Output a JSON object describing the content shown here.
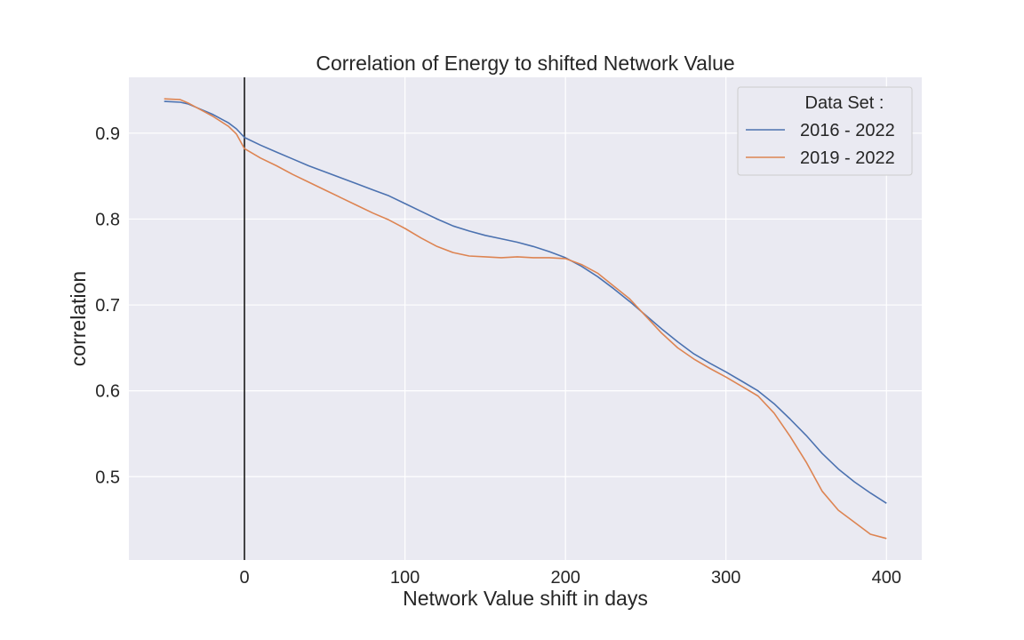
{
  "chart_data": {
    "type": "line",
    "title": "Correlation of Energy to shifted Network Value",
    "xlabel": "Network Value shift in days",
    "ylabel": "correlation",
    "xlim": [
      -72,
      422
    ],
    "ylim": [
      0.403,
      0.965
    ],
    "xticks": [
      0,
      100,
      200,
      300,
      400
    ],
    "yticks": [
      0.5,
      0.6,
      0.7,
      0.8,
      0.9
    ],
    "ytick_labels": [
      "0.5",
      "0.6",
      "0.7",
      "0.8",
      "0.9"
    ],
    "grid": true,
    "vline_x": 0,
    "legend": {
      "title": "Data Set :",
      "placement": "top-right"
    },
    "series": [
      {
        "name": "2016 - 2022",
        "color": "#4c72b0",
        "x": [
          -50,
          -40,
          -35,
          -30,
          -20,
          -10,
          -5,
          0,
          10,
          20,
          30,
          40,
          50,
          60,
          70,
          80,
          90,
          100,
          110,
          120,
          130,
          140,
          150,
          160,
          170,
          180,
          190,
          200,
          210,
          220,
          230,
          240,
          250,
          260,
          270,
          280,
          290,
          300,
          310,
          320,
          330,
          340,
          350,
          360,
          370,
          380,
          390,
          400
        ],
        "y": [
          0.937,
          0.936,
          0.934,
          0.93,
          0.922,
          0.912,
          0.905,
          0.895,
          0.886,
          0.878,
          0.87,
          0.862,
          0.855,
          0.848,
          0.841,
          0.834,
          0.827,
          0.818,
          0.809,
          0.8,
          0.792,
          0.786,
          0.781,
          0.777,
          0.773,
          0.768,
          0.762,
          0.755,
          0.745,
          0.733,
          0.719,
          0.704,
          0.688,
          0.672,
          0.657,
          0.643,
          0.632,
          0.622,
          0.611,
          0.6,
          0.585,
          0.567,
          0.548,
          0.527,
          0.509,
          0.494,
          0.481,
          0.469
        ]
      },
      {
        "name": "2019 - 2022",
        "color": "#dd8452",
        "x": [
          -50,
          -40,
          -35,
          -30,
          -20,
          -10,
          -5,
          0,
          10,
          20,
          30,
          40,
          50,
          60,
          70,
          80,
          90,
          100,
          110,
          120,
          130,
          140,
          150,
          160,
          170,
          180,
          190,
          200,
          210,
          220,
          230,
          240,
          250,
          260,
          270,
          280,
          290,
          300,
          310,
          320,
          330,
          340,
          350,
          360,
          370,
          380,
          390,
          400
        ],
        "y": [
          0.94,
          0.939,
          0.935,
          0.93,
          0.92,
          0.908,
          0.899,
          0.882,
          0.871,
          0.862,
          0.852,
          0.843,
          0.834,
          0.825,
          0.816,
          0.807,
          0.799,
          0.789,
          0.778,
          0.768,
          0.761,
          0.757,
          0.756,
          0.755,
          0.756,
          0.755,
          0.755,
          0.754,
          0.747,
          0.737,
          0.722,
          0.707,
          0.687,
          0.667,
          0.65,
          0.637,
          0.626,
          0.616,
          0.605,
          0.594,
          0.574,
          0.547,
          0.517,
          0.483,
          0.461,
          0.447,
          0.433,
          0.428
        ]
      }
    ]
  }
}
